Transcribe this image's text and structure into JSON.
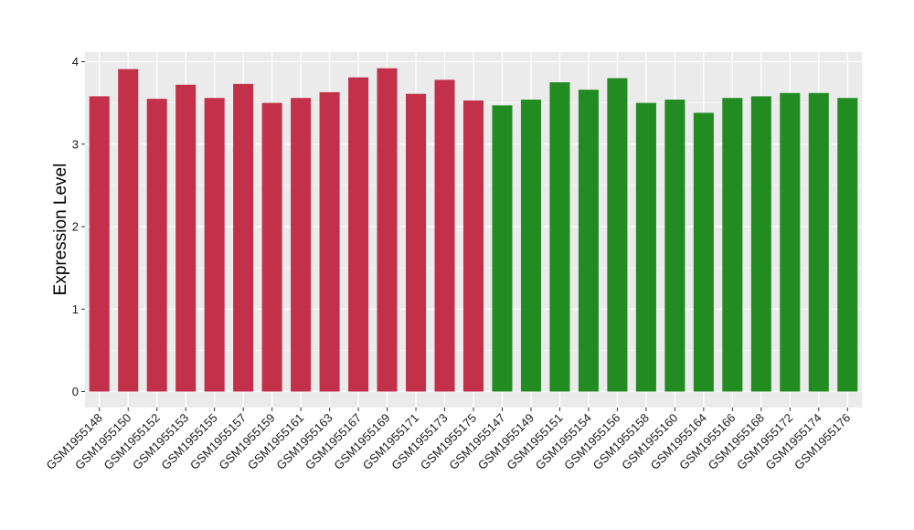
{
  "chart_data": {
    "type": "bar",
    "title": "",
    "xlabel": "",
    "ylabel": "Expression Level",
    "ylim": [
      0,
      4.1
    ],
    "yticks": [
      0,
      1,
      2,
      3,
      4
    ],
    "grid": true,
    "categories": [
      "GSM1955148",
      "GSM1955150",
      "GSM1955152",
      "GSM1955153",
      "GSM1955155",
      "GSM1955157",
      "GSM1955159",
      "GSM1955161",
      "GSM1955163",
      "GSM1955167",
      "GSM1955169",
      "GSM1955171",
      "GSM1955173",
      "GSM1955175",
      "GSM1955147",
      "GSM1955149",
      "GSM1955151",
      "GSM1955154",
      "GSM1955156",
      "GSM1955158",
      "GSM1955160",
      "GSM1955164",
      "GSM1955166",
      "GSM1955168",
      "GSM1955172",
      "GSM1955174",
      "GSM1955176"
    ],
    "values": [
      3.58,
      3.91,
      3.55,
      3.72,
      3.56,
      3.73,
      3.5,
      3.56,
      3.63,
      3.81,
      3.92,
      3.61,
      3.78,
      3.53,
      3.47,
      3.54,
      3.75,
      3.66,
      3.8,
      3.5,
      3.54,
      3.38,
      3.56,
      3.58,
      3.62,
      3.62,
      3.56
    ],
    "bar_colors": [
      "#c3304a",
      "#c3304a",
      "#c3304a",
      "#c3304a",
      "#c3304a",
      "#c3304a",
      "#c3304a",
      "#c3304a",
      "#c3304a",
      "#c3304a",
      "#c3304a",
      "#c3304a",
      "#c3304a",
      "#c3304a",
      "#228b22",
      "#228b22",
      "#228b22",
      "#228b22",
      "#228b22",
      "#228b22",
      "#228b22",
      "#228b22",
      "#228b22",
      "#228b22",
      "#228b22",
      "#228b22",
      "#228b22"
    ],
    "panel_color": "#ebebeb",
    "grid_color": "#ffffff"
  }
}
